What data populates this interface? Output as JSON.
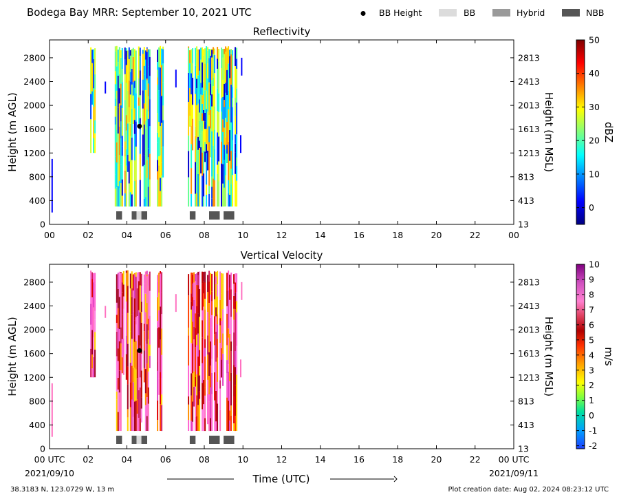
{
  "header": {
    "title": "Bodega Bay MRR:  September 10, 2021 UTC",
    "legend": [
      {
        "label": "BB Height",
        "kind": "dot",
        "color": "#000000"
      },
      {
        "label": "BB",
        "kind": "box",
        "color": "#dcdcdc"
      },
      {
        "label": "Hybrid",
        "kind": "box",
        "color": "#9a9a9a"
      },
      {
        "label": "NBB",
        "kind": "box",
        "color": "#555555"
      }
    ]
  },
  "footer": {
    "location": "38.3183 N, 123.0729 W, 13 m",
    "created": "Plot creation date: Aug 02, 2024 08:23:12 UTC",
    "xlabel": "Time (UTC)",
    "start_date": "2021/09/10",
    "end_date": "2021/09/11"
  },
  "chart_data": [
    {
      "type": "heatmap",
      "title": "Reflectivity",
      "ylabel": "Height (m AGL)",
      "ylabel_right": "Height (m MSL)",
      "x_ticks": [
        "00",
        "02",
        "04",
        "06",
        "08",
        "10",
        "12",
        "14",
        "16",
        "18",
        "20",
        "22",
        "00"
      ],
      "y_ticks": [
        0,
        400,
        800,
        1200,
        1600,
        2000,
        2400,
        2800
      ],
      "y_ticks_right": [
        13,
        413,
        813,
        1213,
        1613,
        2013,
        2413,
        2813
      ],
      "xlim": [
        0,
        24
      ],
      "ylim": [
        0,
        3100
      ],
      "colorbar": {
        "label": "dBZ",
        "min": -5,
        "max": 50,
        "ticks": [
          0,
          10,
          20,
          30,
          40,
          50
        ]
      },
      "bb_height": {
        "time": 4.65,
        "height": 1650
      },
      "bright_band_flags": [
        {
          "start": 3.45,
          "end": 3.75,
          "class": "NBB"
        },
        {
          "start": 4.25,
          "end": 4.5,
          "class": "NBB"
        },
        {
          "start": 4.5,
          "end": 4.75,
          "class": "BB"
        },
        {
          "start": 4.75,
          "end": 5.05,
          "class": "NBB"
        },
        {
          "start": 7.25,
          "end": 7.55,
          "class": "NBB"
        },
        {
          "start": 8.25,
          "end": 8.8,
          "class": "NBB"
        },
        {
          "start": 9.0,
          "end": 9.55,
          "class": "NBB"
        }
      ],
      "echo_periods": [
        {
          "start": 2.1,
          "end": 2.35,
          "bottom": 1200,
          "top": 3000
        },
        {
          "start": 3.3,
          "end": 5.2,
          "bottom": 300,
          "top": 3000
        },
        {
          "start": 5.55,
          "end": 5.9,
          "bottom": 300,
          "top": 3000
        },
        {
          "start": 7.15,
          "end": 9.7,
          "bottom": 300,
          "top": 3000
        }
      ]
    },
    {
      "type": "heatmap",
      "title": "Vertical Velocity",
      "ylabel": "Height (m AGL)",
      "ylabel_right": "Height (m MSL)",
      "x_ticks": [
        "00 UTC",
        "02",
        "04",
        "06",
        "08",
        "10",
        "12",
        "14",
        "16",
        "18",
        "20",
        "22",
        "00 UTC"
      ],
      "y_ticks": [
        0,
        400,
        800,
        1200,
        1600,
        2000,
        2400,
        2800
      ],
      "y_ticks_right": [
        13,
        413,
        813,
        1213,
        1613,
        2013,
        2413,
        2813
      ],
      "xlim": [
        0,
        24
      ],
      "ylim": [
        0,
        3100
      ],
      "colorbar": {
        "label": "m/s",
        "min": -2.2,
        "max": 10,
        "ticks": [
          -2,
          -1,
          0,
          1,
          2,
          3,
          4,
          5,
          6,
          7,
          8,
          9,
          10
        ]
      },
      "bb_height": {
        "time": 4.65,
        "height": 1650
      },
      "bright_band_flags": [
        {
          "start": 3.45,
          "end": 3.75,
          "class": "NBB"
        },
        {
          "start": 4.25,
          "end": 4.5,
          "class": "NBB"
        },
        {
          "start": 4.5,
          "end": 4.75,
          "class": "BB"
        },
        {
          "start": 4.75,
          "end": 5.05,
          "class": "NBB"
        },
        {
          "start": 7.25,
          "end": 7.55,
          "class": "NBB"
        },
        {
          "start": 8.25,
          "end": 8.8,
          "class": "NBB"
        },
        {
          "start": 9.0,
          "end": 9.55,
          "class": "NBB"
        }
      ],
      "echo_periods": [
        {
          "start": 2.1,
          "end": 2.35,
          "bottom": 1200,
          "top": 3000
        },
        {
          "start": 3.3,
          "end": 5.2,
          "bottom": 300,
          "top": 3000
        },
        {
          "start": 5.55,
          "end": 5.9,
          "bottom": 300,
          "top": 3000
        },
        {
          "start": 7.15,
          "end": 9.7,
          "bottom": 300,
          "top": 3000
        }
      ]
    }
  ]
}
